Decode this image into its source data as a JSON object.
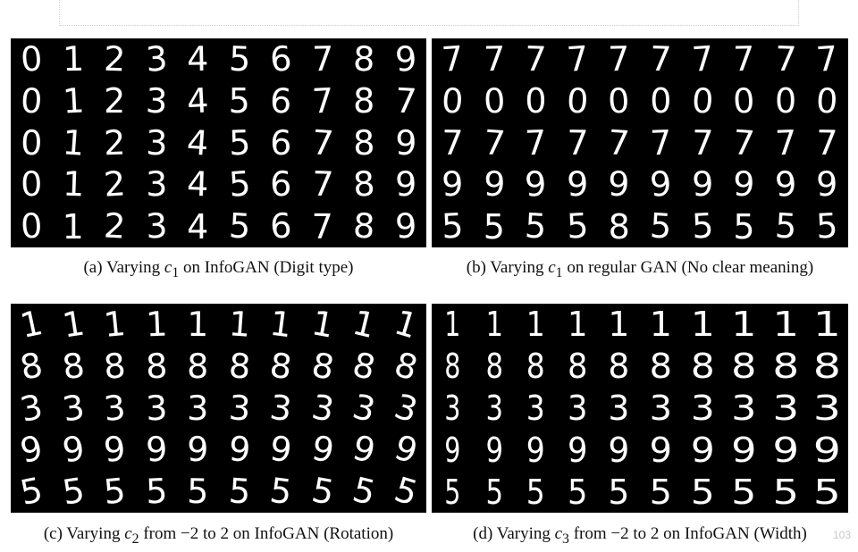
{
  "panels": {
    "a": {
      "rows": [
        [
          "0",
          "1",
          "2",
          "3",
          "4",
          "5",
          "6",
          "7",
          "8",
          "9"
        ],
        [
          "0",
          "1",
          "2",
          "3",
          "4",
          "5",
          "6",
          "7",
          "8",
          "7"
        ],
        [
          "0",
          "1",
          "2",
          "3",
          "4",
          "5",
          "6",
          "7",
          "8",
          "9"
        ],
        [
          "0",
          "1",
          "2",
          "3",
          "4",
          "5",
          "6",
          "7",
          "8",
          "9"
        ],
        [
          "0",
          "1",
          "2",
          "3",
          "4",
          "5",
          "6",
          "7",
          "8",
          "9"
        ]
      ],
      "caption": {
        "prefix": "(a) Varying ",
        "var": "c",
        "sub": "1",
        "suffix": " on InfoGAN (Digit type)"
      }
    },
    "b": {
      "rows": [
        [
          "7",
          "7",
          "7",
          "7",
          "7",
          "7",
          "7",
          "7",
          "7",
          "7"
        ],
        [
          "0",
          "0",
          "0",
          "0",
          "0",
          "0",
          "0",
          "0",
          "0",
          "0"
        ],
        [
          "7",
          "7",
          "7",
          "7",
          "7",
          "7",
          "7",
          "7",
          "7",
          "7"
        ],
        [
          "9",
          "9",
          "9",
          "9",
          "9",
          "9",
          "9",
          "9",
          "9",
          "9"
        ],
        [
          "5",
          "5",
          "5",
          "5",
          "8",
          "5",
          "5",
          "5",
          "5",
          "5"
        ]
      ],
      "caption": {
        "prefix": "(b) Varying ",
        "var": "c",
        "sub": "1",
        "suffix": " on regular GAN (No clear meaning)"
      }
    },
    "c": {
      "rows": [
        [
          "1",
          "1",
          "1",
          "1",
          "1",
          "1",
          "1",
          "1",
          "1",
          "1"
        ],
        [
          "8",
          "8",
          "8",
          "8",
          "8",
          "8",
          "8",
          "8",
          "8",
          "8"
        ],
        [
          "3",
          "3",
          "3",
          "3",
          "3",
          "3",
          "3",
          "3",
          "3",
          "3"
        ],
        [
          "9",
          "9",
          "9",
          "9",
          "9",
          "9",
          "9",
          "9",
          "9",
          "9"
        ],
        [
          "5",
          "5",
          "5",
          "5",
          "5",
          "5",
          "5",
          "5",
          "5",
          "5"
        ]
      ],
      "caption": {
        "prefix": "(c) Varying ",
        "var": "c",
        "sub": "2",
        "suffix": " from −2 to 2 on InfoGAN (Rotation)"
      }
    },
    "d": {
      "rows": [
        [
          "1",
          "1",
          "1",
          "1",
          "1",
          "1",
          "1",
          "1",
          "1",
          "1"
        ],
        [
          "8",
          "8",
          "8",
          "8",
          "8",
          "8",
          "8",
          "8",
          "8",
          "8"
        ],
        [
          "3",
          "3",
          "3",
          "3",
          "3",
          "3",
          "3",
          "3",
          "3",
          "3"
        ],
        [
          "9",
          "9",
          "9",
          "9",
          "9",
          "9",
          "9",
          "9",
          "9",
          "9"
        ],
        [
          "5",
          "5",
          "5",
          "5",
          "5",
          "5",
          "5",
          "5",
          "5",
          "5"
        ]
      ],
      "caption": {
        "prefix": "(d) Varying ",
        "var": "c",
        "sub": "3",
        "suffix": " from −2 to 2 on InfoGAN (Width)"
      }
    }
  },
  "watermark": "103"
}
